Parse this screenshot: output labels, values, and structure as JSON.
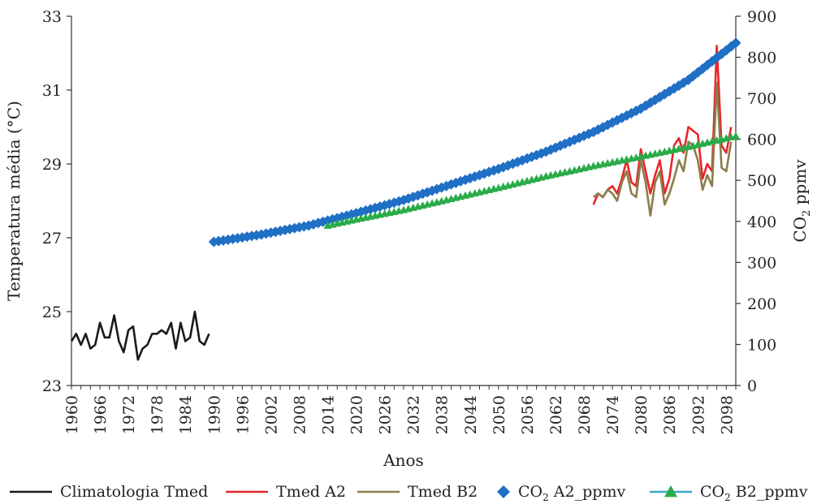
{
  "chart_data": {
    "type": "line",
    "xlabel": "Anos",
    "ylabel_left": "Temperatura média (°C)",
    "ylabel_right_main": "CO",
    "ylabel_right_sub": "2",
    "ylabel_right_rest": " ppmv",
    "x_ticks": [
      "1960",
      "1966",
      "1972",
      "1978",
      "1984",
      "1990",
      "1996",
      "2002",
      "2008",
      "2014",
      "2020",
      "2026",
      "2032",
      "2038",
      "2044",
      "2050",
      "2056",
      "2062",
      "2068",
      "2074",
      "2080",
      "2086",
      "2092",
      "2098"
    ],
    "xlim": [
      1960,
      2100
    ],
    "ylim_left": [
      23,
      33
    ],
    "yticks_left": [
      "23",
      "25",
      "27",
      "29",
      "31",
      "33"
    ],
    "ylim_right": [
      0,
      900
    ],
    "yticks_right": [
      "0",
      "100",
      "200",
      "300",
      "400",
      "500",
      "600",
      "700",
      "800",
      "900"
    ],
    "legend_position": "bottom",
    "series": [
      {
        "name": "Climatologia Tmed",
        "axis": "left",
        "color": "#1a1a1a",
        "marker": "none",
        "x_start": 1960,
        "values": [
          24.2,
          24.4,
          24.1,
          24.4,
          24.0,
          24.1,
          24.7,
          24.3,
          24.3,
          24.9,
          24.2,
          23.9,
          24.5,
          24.6,
          23.7,
          24.0,
          24.1,
          24.4,
          24.4,
          24.5,
          24.4,
          24.7,
          24.0,
          24.7,
          24.2,
          24.3,
          25.0,
          24.2,
          24.1,
          24.4
        ]
      },
      {
        "name": "Tmed A2",
        "axis": "left",
        "color": "#e8262a",
        "marker": "none",
        "x_start": 2070,
        "values": [
          27.9,
          28.2,
          28.1,
          28.3,
          28.4,
          28.2,
          28.6,
          29.1,
          28.5,
          28.4,
          29.4,
          28.8,
          28.2,
          28.7,
          29.1,
          28.2,
          28.6,
          29.5,
          29.7,
          29.3,
          30.0,
          29.9,
          29.8,
          28.6,
          29.0,
          28.8,
          32.2,
          29.5,
          29.3,
          30.0
        ]
      },
      {
        "name": "Tmed B2",
        "axis": "left",
        "color": "#8b7d4a",
        "marker": "none",
        "x_start": 2070,
        "values": [
          28.1,
          28.2,
          28.1,
          28.3,
          28.2,
          28.0,
          28.5,
          28.8,
          28.2,
          28.1,
          29.1,
          28.5,
          27.6,
          28.5,
          28.8,
          27.9,
          28.2,
          28.6,
          29.1,
          28.8,
          29.6,
          29.5,
          29.1,
          28.3,
          28.7,
          28.4,
          31.2,
          28.9,
          28.8,
          29.6
        ]
      },
      {
        "name": "CO",
        "name_sub": "2",
        "name_rest": " A2_ppmv",
        "axis": "right",
        "color": "#1f6fc5",
        "marker": "diamond",
        "x": [
          1990,
          2000,
          2010,
          2020,
          2030,
          2040,
          2050,
          2060,
          2070,
          2080,
          2090,
          2100
        ],
        "values": [
          350,
          368,
          390,
          420,
          452,
          490,
          528,
          570,
          618,
          675,
          745,
          835
        ]
      },
      {
        "name": "CO",
        "name_sub": "2",
        "name_rest": " B2_ppmv",
        "axis": "right",
        "color": "#2aab4a",
        "line_color": "#3aa6c8",
        "marker": "triangle",
        "x": [
          2014,
          2020,
          2030,
          2040,
          2050,
          2060,
          2070,
          2080,
          2090,
          2100
        ],
        "values": [
          390,
          405,
          428,
          455,
          482,
          510,
          535,
          558,
          582,
          608
        ]
      }
    ]
  }
}
